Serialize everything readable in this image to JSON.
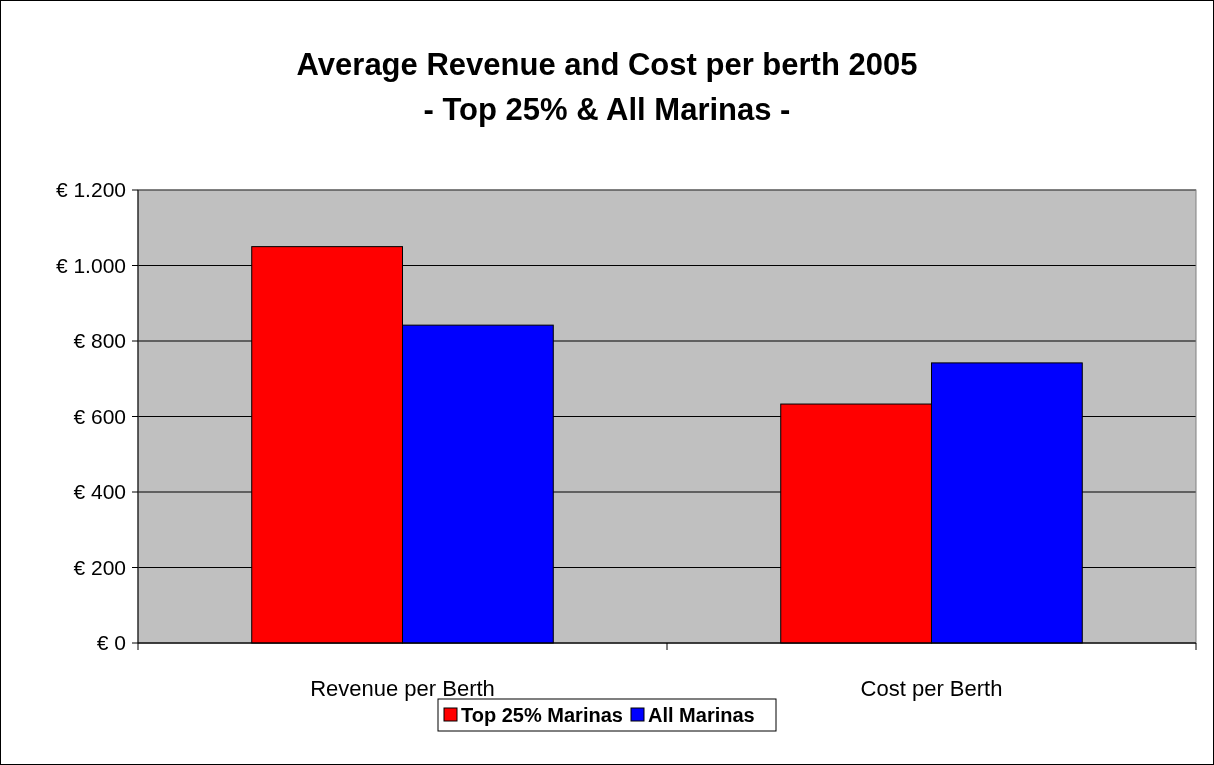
{
  "chart_data": {
    "type": "bar",
    "title": "Average Revenue and Cost per berth 2005",
    "subtitle": "- Top 25% & All Marinas -",
    "categories": [
      "Revenue per Berth",
      "Cost per Berth"
    ],
    "series": [
      {
        "name": "Top 25% Marinas",
        "color": "#ff0000",
        "values": [
          1050,
          633
        ]
      },
      {
        "name": "All Marinas",
        "color": "#0000ff",
        "values": [
          842,
          742
        ]
      }
    ],
    "ylim": [
      0,
      1200
    ],
    "yticks": [
      {
        "value": 0,
        "label": "€ 0"
      },
      {
        "value": 200,
        "label": "€ 200"
      },
      {
        "value": 400,
        "label": "€ 400"
      },
      {
        "value": 600,
        "label": "€ 600"
      },
      {
        "value": 800,
        "label": "€ 800"
      },
      {
        "value": 1000,
        "label": "€ 1.000"
      },
      {
        "value": 1200,
        "label": "€ 1.200"
      }
    ],
    "grid": "y",
    "legend": "bottom"
  }
}
